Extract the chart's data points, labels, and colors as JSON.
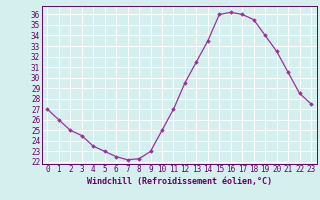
{
  "hours": [
    0,
    1,
    2,
    3,
    4,
    5,
    6,
    7,
    8,
    9,
    10,
    11,
    12,
    13,
    14,
    15,
    16,
    17,
    18,
    19,
    20,
    21,
    22,
    23
  ],
  "values": [
    27.0,
    26.0,
    25.0,
    24.5,
    23.5,
    23.0,
    22.5,
    22.2,
    22.3,
    23.0,
    25.0,
    27.0,
    29.5,
    31.5,
    33.5,
    36.0,
    36.2,
    36.0,
    35.5,
    34.0,
    32.5,
    30.5,
    28.5,
    27.5
  ],
  "line_color": "#993399",
  "marker": "D",
  "marker_size": 1.8,
  "xlabel": "Windchill (Refroidissement éolien,°C)",
  "xlim": [
    -0.5,
    23.5
  ],
  "ylim": [
    21.8,
    36.8
  ],
  "yticks": [
    22,
    23,
    24,
    25,
    26,
    27,
    28,
    29,
    30,
    31,
    32,
    33,
    34,
    35,
    36
  ],
  "xticks": [
    0,
    1,
    2,
    3,
    4,
    5,
    6,
    7,
    8,
    9,
    10,
    11,
    12,
    13,
    14,
    15,
    16,
    17,
    18,
    19,
    20,
    21,
    22,
    23
  ],
  "bg_color": "#d5efef",
  "grid_color": "#ffffff",
  "tick_color": "#660066",
  "label_fontsize": 6.0,
  "tick_fontsize": 5.5,
  "linewidth": 0.9
}
